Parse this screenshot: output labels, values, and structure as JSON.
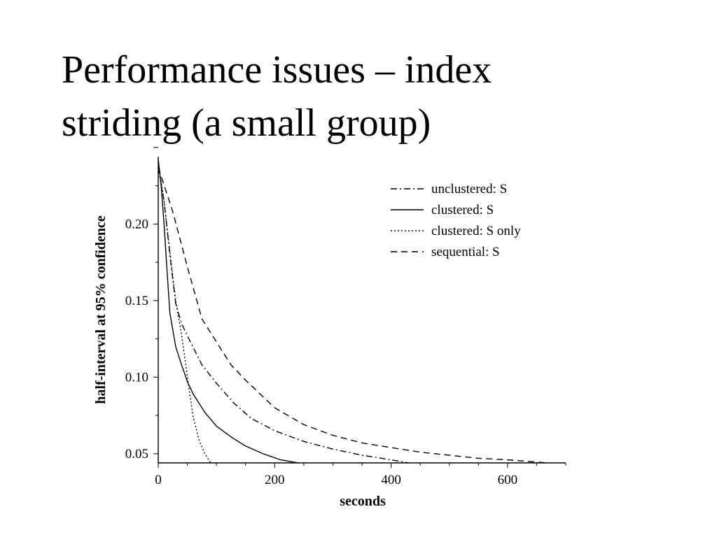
{
  "slide": {
    "title_line1": "Performance issues – index",
    "title_line2": "striding (a small group)"
  },
  "chart_data": {
    "type": "line",
    "title": "",
    "xlabel": "seconds",
    "ylabel": "half-interval at 95% confidence",
    "xlim": [
      0,
      700
    ],
    "ylim": [
      0.044,
      0.244
    ],
    "xticks": [
      0,
      200,
      400,
      600
    ],
    "xtick_labels": [
      "0",
      "200",
      "400",
      "600"
    ],
    "yticks": [
      0.05,
      0.1,
      0.15,
      0.2
    ],
    "ytick_labels": [
      "0.05",
      "0.10",
      "0.15",
      "0.20"
    ],
    "grid": false,
    "legend_position": "top-right",
    "series": [
      {
        "name": "unclustered: S",
        "dash": "dashdot",
        "x": [
          0,
          10,
          20,
          30,
          40,
          50,
          75,
          100,
          130,
          160,
          200,
          250,
          300,
          350,
          400,
          430
        ],
        "y": [
          0.237,
          0.215,
          0.18,
          0.148,
          0.135,
          0.127,
          0.108,
          0.096,
          0.083,
          0.073,
          0.065,
          0.058,
          0.053,
          0.049,
          0.046,
          0.044
        ]
      },
      {
        "name": "clustered: S",
        "color": "#000000",
        "dash": "solid",
        "x": [
          0,
          5,
          10,
          15,
          20,
          30,
          40,
          50,
          60,
          80,
          100,
          125,
          150,
          180,
          210,
          240
        ],
        "y": [
          0.242,
          0.225,
          0.2,
          0.17,
          0.142,
          0.12,
          0.108,
          0.097,
          0.089,
          0.077,
          0.068,
          0.061,
          0.055,
          0.05,
          0.046,
          0.044
        ]
      },
      {
        "name": "clustered: S only",
        "dash": "dotted",
        "x": [
          0,
          10,
          20,
          30,
          40,
          50,
          60,
          70,
          80,
          90
        ],
        "y": [
          0.24,
          0.215,
          0.182,
          0.15,
          0.128,
          0.1,
          0.074,
          0.059,
          0.05,
          0.044
        ]
      },
      {
        "name": "sequential: S",
        "dash": "dashed",
        "x": [
          0,
          25,
          50,
          75,
          100,
          125,
          150,
          200,
          250,
          300,
          350,
          400,
          450,
          500,
          550,
          600,
          650,
          670
        ],
        "y": [
          0.237,
          0.208,
          0.172,
          0.138,
          0.123,
          0.108,
          0.098,
          0.08,
          0.069,
          0.062,
          0.057,
          0.054,
          0.051,
          0.049,
          0.047,
          0.046,
          0.0445,
          0.044
        ]
      }
    ]
  }
}
